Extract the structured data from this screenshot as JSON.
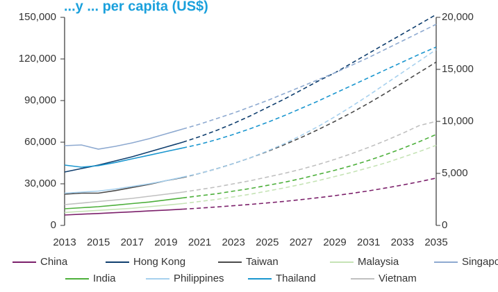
{
  "chart_data": {
    "type": "line",
    "title": "...y ... per capita (US$)",
    "x": [
      2013,
      2014,
      2015,
      2016,
      2017,
      2018,
      2019,
      2020,
      2021,
      2022,
      2023,
      2024,
      2025,
      2026,
      2027,
      2028,
      2029,
      2030,
      2031,
      2032,
      2033,
      2034,
      2035
    ],
    "x_ticks": [
      "2013",
      "2015",
      "2017",
      "2019",
      "2021",
      "2023",
      "2025",
      "2027",
      "2029",
      "2031",
      "2033",
      "2035"
    ],
    "y_left": {
      "range": [
        0,
        150000
      ],
      "ticks": [
        "0",
        "30,000",
        "60,000",
        "90,000",
        "120,000",
        "150,000"
      ]
    },
    "y_right": {
      "range": [
        0,
        20000
      ],
      "ticks": [
        "0",
        "5,000",
        "10,000",
        "15,000",
        "20,000"
      ]
    },
    "actual_end_year": 2020,
    "grid": false,
    "legend_position": "bottom",
    "series": [
      {
        "name": "China",
        "axis": "right",
        "color": "#7b1f6a",
        "values": [
          1000,
          1080,
          1150,
          1230,
          1310,
          1390,
          1470,
          1560,
          1660,
          1770,
          1890,
          2020,
          2160,
          2310,
          2480,
          2660,
          2860,
          3080,
          3320,
          3590,
          3880,
          4200,
          4550
        ]
      },
      {
        "name": "Hong Kong",
        "axis": "left",
        "color": "#0f3e6e",
        "values": [
          38500,
          41000,
          43500,
          46500,
          49500,
          53000,
          56500,
          60000,
          64000,
          68500,
          73500,
          79000,
          85000,
          91000,
          97500,
          104000,
          110000,
          117000,
          124000,
          131000,
          138000,
          145000,
          152000
        ]
      },
      {
        "name": "Taiwan",
        "axis": "right",
        "color": "#4a4a4a",
        "values": [
          3000,
          3100,
          3100,
          3350,
          3650,
          3950,
          4300,
          4600,
          5000,
          5450,
          5950,
          6500,
          7100,
          7750,
          8450,
          9200,
          10000,
          10850,
          11750,
          12700,
          13700,
          14700,
          15700
        ]
      },
      {
        "name": "Malaysia",
        "axis": "right",
        "color": "#c5e3b5",
        "values": [
          1250,
          1350,
          1450,
          1550,
          1650,
          1800,
          1950,
          2100,
          2300,
          2500,
          2750,
          3000,
          3300,
          3600,
          3950,
          4300,
          4700,
          5100,
          5550,
          6000,
          6550,
          7100,
          7700
        ]
      },
      {
        "name": "Singapore",
        "axis": "left",
        "color": "#8da9d0",
        "values": [
          57500,
          58000,
          55000,
          57000,
          59500,
          62500,
          66000,
          69500,
          73000,
          77000,
          81000,
          85500,
          90000,
          95000,
          100000,
          105000,
          110000,
          115500,
          121000,
          127000,
          133000,
          139000,
          145000
        ]
      },
      {
        "name": "India",
        "axis": "right",
        "color": "#4caf3a",
        "values": [
          1600,
          1700,
          1800,
          1950,
          2100,
          2250,
          2450,
          2650,
          2850,
          3050,
          3300,
          3550,
          3850,
          4150,
          4500,
          4900,
          5300,
          5750,
          6250,
          6800,
          7400,
          8050,
          8750
        ]
      },
      {
        "name": "Philippines",
        "axis": "right",
        "color": "#a6d0ee",
        "values": [
          3100,
          3200,
          3300,
          3500,
          3750,
          4000,
          4300,
          4650,
          5000,
          5450,
          5950,
          6500,
          7150,
          7850,
          8650,
          9500,
          10450,
          11450,
          12500,
          13600,
          14700,
          15800,
          16900
        ]
      },
      {
        "name": "Thailand",
        "axis": "right",
        "color": "#1a96cf",
        "values": [
          5800,
          5600,
          5750,
          6050,
          6400,
          6750,
          7100,
          7450,
          7800,
          8250,
          8750,
          9300,
          9900,
          10550,
          11250,
          11950,
          12700,
          13450,
          14200,
          14950,
          15700,
          16450,
          17150
        ]
      },
      {
        "name": "Vietnam",
        "axis": "right",
        "color": "#c0c0c0",
        "values": [
          2000,
          2150,
          2300,
          2450,
          2600,
          2800,
          3000,
          3200,
          3450,
          3700,
          4000,
          4300,
          4650,
          5000,
          5400,
          5850,
          6350,
          6900,
          7500,
          8150,
          8850,
          9600,
          10000
        ]
      }
    ]
  }
}
